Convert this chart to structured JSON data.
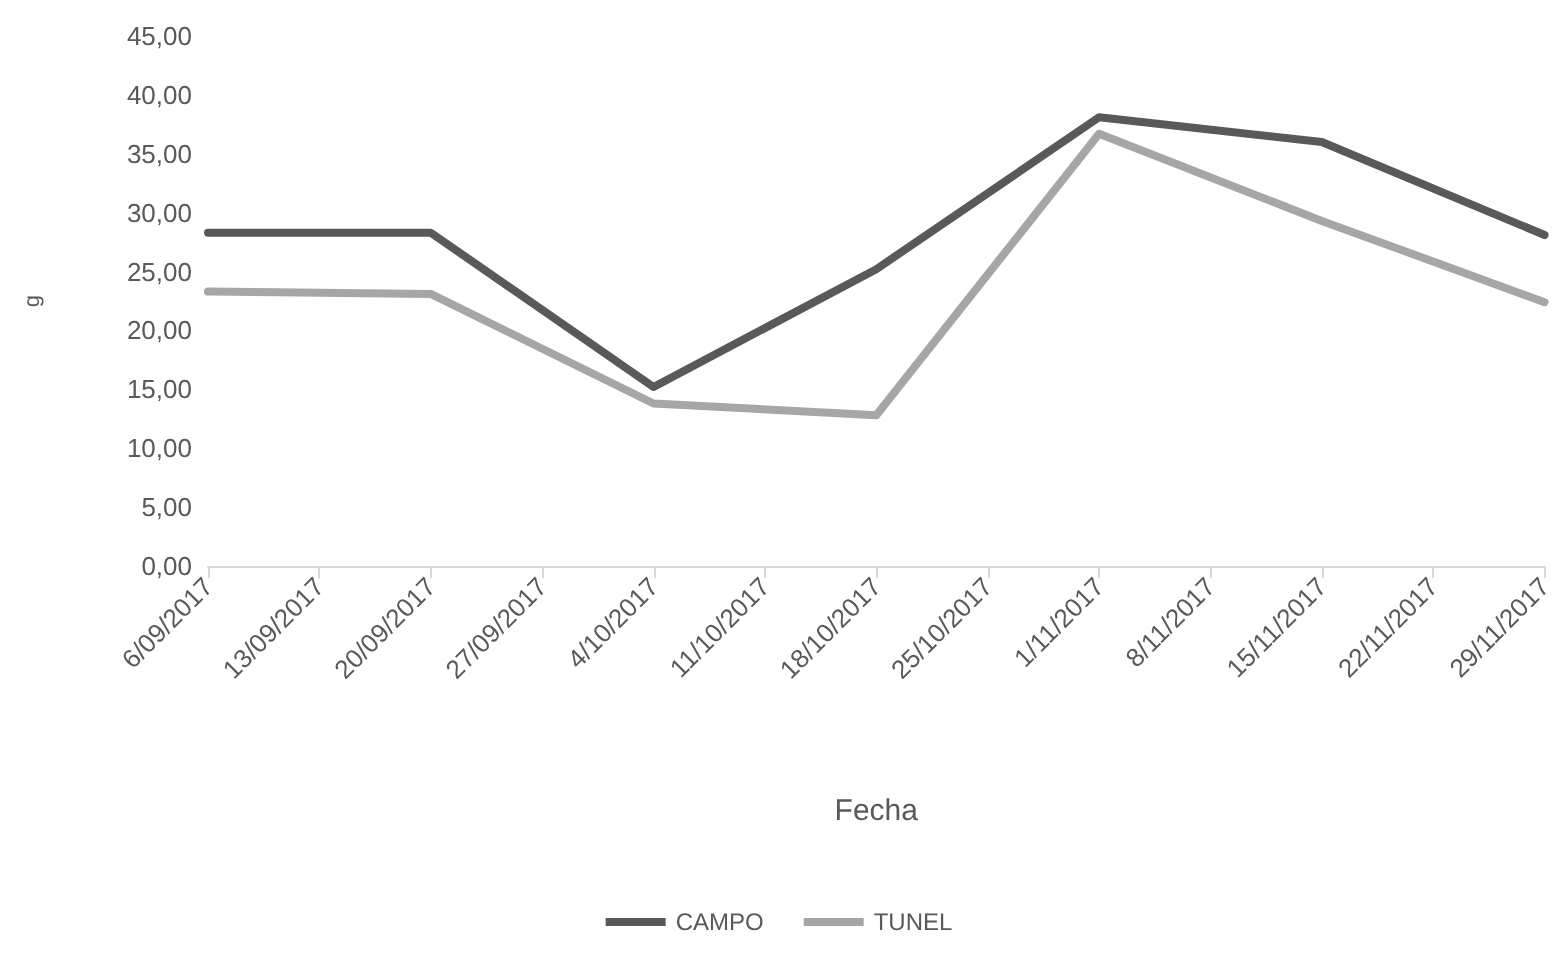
{
  "chart_data": {
    "type": "line",
    "xlabel": "Fecha",
    "ylabel": "g",
    "x": [
      "2017-09-06",
      "2017-09-20",
      "2017-10-04",
      "2017-10-18",
      "2017-11-01",
      "2017-11-15",
      "2017-11-29"
    ],
    "series": [
      {
        "name": "CAMPO",
        "color": "#595959",
        "values": [
          28.3,
          28.3,
          15.2,
          25.2,
          38.1,
          36.0,
          28.1
        ]
      },
      {
        "name": "TUNEL",
        "color": "#a6a6a6",
        "values": [
          23.3,
          23.1,
          13.8,
          12.8,
          36.7,
          29.3,
          22.4
        ]
      }
    ],
    "xlim": [
      "2017-09-06",
      "2017-11-29"
    ],
    "xticks": [
      {
        "value": "2017-09-06",
        "label": "6/09/2017"
      },
      {
        "value": "2017-09-13",
        "label": "13/09/2017"
      },
      {
        "value": "2017-09-20",
        "label": "20/09/2017"
      },
      {
        "value": "2017-09-27",
        "label": "27/09/2017"
      },
      {
        "value": "2017-10-04",
        "label": "4/10/2017"
      },
      {
        "value": "2017-10-11",
        "label": "11/10/2017"
      },
      {
        "value": "2017-10-18",
        "label": "18/10/2017"
      },
      {
        "value": "2017-10-25",
        "label": "25/10/2017"
      },
      {
        "value": "2017-11-01",
        "label": "1/11/2017"
      },
      {
        "value": "2017-11-08",
        "label": "8/11/2017"
      },
      {
        "value": "2017-11-15",
        "label": "15/11/2017"
      },
      {
        "value": "2017-11-22",
        "label": "22/11/2017"
      },
      {
        "value": "2017-11-29",
        "label": "29/11/2017"
      }
    ],
    "ylim": [
      0,
      45
    ],
    "yticks": [
      {
        "value": 0,
        "label": "0,00"
      },
      {
        "value": 5,
        "label": "5,00"
      },
      {
        "value": 10,
        "label": "10,00"
      },
      {
        "value": 15,
        "label": "15,00"
      },
      {
        "value": 20,
        "label": "20,00"
      },
      {
        "value": 25,
        "label": "25,00"
      },
      {
        "value": 30,
        "label": "30,00"
      },
      {
        "value": 35,
        "label": "35,00"
      },
      {
        "value": 40,
        "label": "40,00"
      },
      {
        "value": 45,
        "label": "45,00"
      }
    ],
    "grid": false,
    "legend": "bottom",
    "marker": "none",
    "line_style": "solid"
  }
}
